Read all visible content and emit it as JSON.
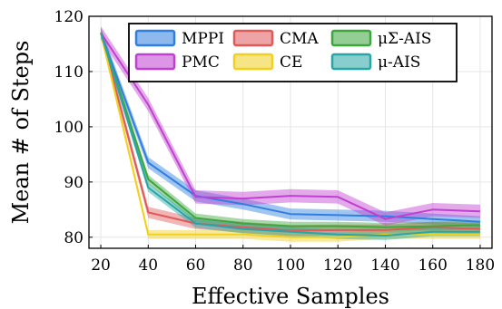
{
  "chart_data": {
    "type": "line",
    "title": "",
    "xlabel": "Effective Samples",
    "ylabel": "Mean # of Steps",
    "x": [
      20,
      40,
      60,
      80,
      100,
      120,
      140,
      160,
      180
    ],
    "xlim": [
      15,
      185
    ],
    "ylim": [
      78,
      120
    ],
    "xticks": [
      20,
      40,
      60,
      80,
      100,
      120,
      140,
      160,
      180
    ],
    "yticks": [
      80,
      90,
      100,
      110,
      120
    ],
    "grid": true,
    "legend_position": "top",
    "series": [
      {
        "name": "MPPI",
        "color": "#2f7fe0",
        "values": [
          117,
          93.5,
          87.5,
          86,
          84.2,
          84,
          83.8,
          83.3,
          82.8
        ],
        "band": 1.0
      },
      {
        "name": "CMA",
        "color": "#e05a5a",
        "values": [
          117,
          84.5,
          82.5,
          81.8,
          81.2,
          81.3,
          81.3,
          81.8,
          81.5
        ],
        "band": 1.0
      },
      {
        "name": "μΣ-AIS",
        "color": "#3da63d",
        "values": [
          117,
          90.5,
          83.5,
          82.5,
          82,
          82,
          81.8,
          82,
          82.2
        ],
        "band": 0.8
      },
      {
        "name": "PMC",
        "color": "#c040d0",
        "values": [
          117,
          104,
          87.3,
          87,
          87.5,
          87.3,
          83.3,
          85,
          84.7
        ],
        "band": 1.2
      },
      {
        "name": "CE",
        "color": "#f0d020",
        "values": [
          117,
          80.5,
          80.5,
          80.5,
          80,
          80,
          80.5,
          80.5,
          80.5
        ],
        "band": 0.8
      },
      {
        "name": "μ-AIS",
        "color": "#26a6a6",
        "values": [
          117,
          89,
          82.5,
          81.5,
          81,
          80.5,
          80.3,
          81,
          81
        ],
        "band": 0.8
      }
    ]
  }
}
